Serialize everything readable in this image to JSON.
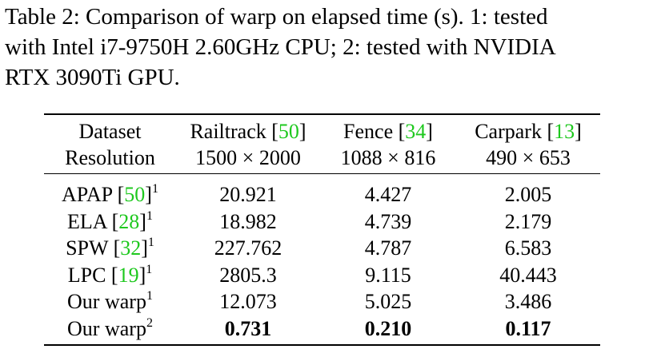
{
  "caption": {
    "lines": [
      "Table 2: Comparison of warp on elapsed time (s). 1: tested",
      "with Intel i7-9750H 2.60GHz CPU; 2: tested with NVIDIA",
      "RTX 3090Ti GPU."
    ]
  },
  "table": {
    "header": [
      [
        [
          {
            "text": "Dataset"
          }
        ],
        [
          {
            "text": "Railtrack ["
          },
          {
            "text": "50",
            "link": true
          },
          {
            "text": "]"
          }
        ],
        [
          {
            "text": "Fence ["
          },
          {
            "text": "34",
            "link": true
          },
          {
            "text": "]"
          }
        ],
        [
          {
            "text": "Carpark ["
          },
          {
            "text": "13",
            "link": true
          },
          {
            "text": "]"
          }
        ]
      ],
      [
        [
          {
            "text": "Resolution"
          }
        ],
        [
          {
            "text": "1500 × 2000"
          }
        ],
        [
          {
            "text": "1088 × 816"
          }
        ],
        [
          {
            "text": "490 × 653"
          }
        ]
      ]
    ],
    "rows": [
      [
        [
          {
            "text": "APAP ["
          },
          {
            "text": "50",
            "link": true
          },
          {
            "text": "]"
          },
          {
            "text": "1",
            "sup": true
          }
        ],
        [
          {
            "text": "20.921"
          }
        ],
        [
          {
            "text": "4.427"
          }
        ],
        [
          {
            "text": "2.005"
          }
        ]
      ],
      [
        [
          {
            "text": "ELA ["
          },
          {
            "text": "28",
            "link": true
          },
          {
            "text": "]"
          },
          {
            "text": "1",
            "sup": true
          }
        ],
        [
          {
            "text": "18.982"
          }
        ],
        [
          {
            "text": "4.739"
          }
        ],
        [
          {
            "text": "2.179"
          }
        ]
      ],
      [
        [
          {
            "text": "SPW ["
          },
          {
            "text": "32",
            "link": true
          },
          {
            "text": "]"
          },
          {
            "text": "1",
            "sup": true
          }
        ],
        [
          {
            "text": "227.762"
          }
        ],
        [
          {
            "text": "4.787"
          }
        ],
        [
          {
            "text": "6.583"
          }
        ]
      ],
      [
        [
          {
            "text": "LPC ["
          },
          {
            "text": "19",
            "link": true
          },
          {
            "text": "]"
          },
          {
            "text": "1",
            "sup": true
          }
        ],
        [
          {
            "text": "2805.3"
          }
        ],
        [
          {
            "text": "9.115"
          }
        ],
        [
          {
            "text": "40.443"
          }
        ]
      ],
      [
        [
          {
            "text": "Our warp"
          },
          {
            "text": "1",
            "sup": true
          }
        ],
        [
          {
            "text": "12.073"
          }
        ],
        [
          {
            "text": "5.025"
          }
        ],
        [
          {
            "text": "3.486"
          }
        ]
      ],
      [
        [
          {
            "text": "Our warp"
          },
          {
            "text": "2",
            "sup": true
          }
        ],
        [
          {
            "text": "0.731",
            "bold": true
          }
        ],
        [
          {
            "text": "0.210",
            "bold": true
          }
        ],
        [
          {
            "text": "0.117",
            "bold": true
          }
        ]
      ]
    ]
  }
}
